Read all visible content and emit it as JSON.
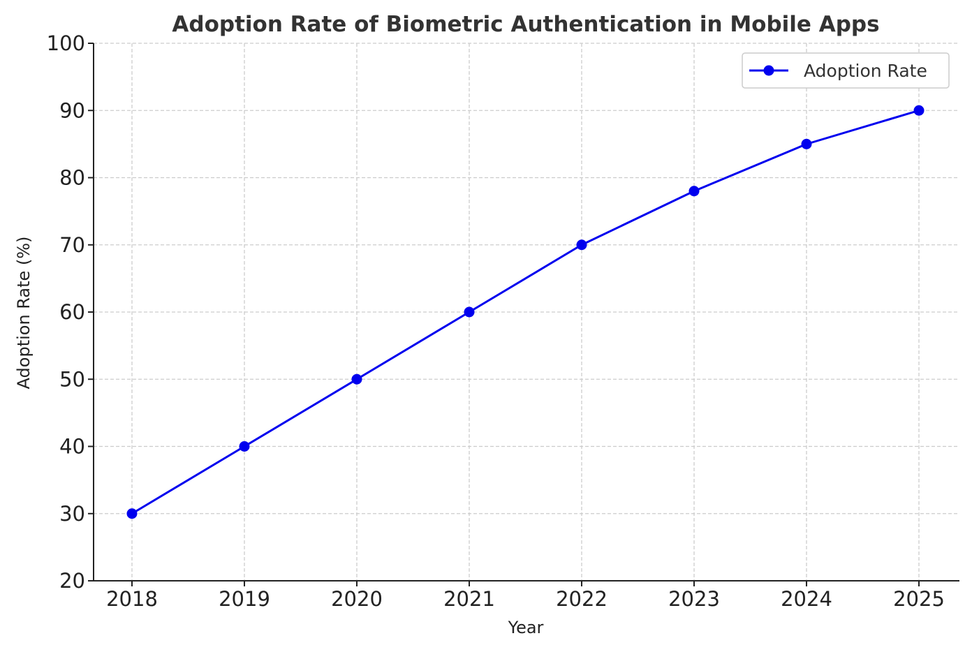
{
  "chart_data": {
    "type": "line",
    "title": "Adoption Rate of Biometric Authentication in Mobile Apps",
    "xlabel": "Year",
    "ylabel": "Adoption Rate (%)",
    "x": [
      "2018",
      "2019",
      "2020",
      "2021",
      "2022",
      "2023",
      "2024",
      "2025"
    ],
    "series": [
      {
        "name": "Adoption Rate",
        "values": [
          30,
          40,
          50,
          60,
          70,
          78,
          85,
          90
        ],
        "color": "#0000ee",
        "marker": "circle"
      }
    ],
    "ylim": [
      20,
      100
    ],
    "yticks": [
      20,
      30,
      40,
      50,
      60,
      70,
      80,
      90,
      100
    ],
    "grid": true,
    "legend_position": "top-right"
  }
}
